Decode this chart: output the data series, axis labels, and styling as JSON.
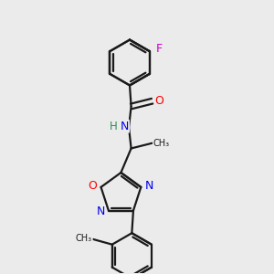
{
  "background_color": "#ebebeb",
  "bond_color": "#1a1a1a",
  "bond_width": 1.6,
  "atom_colors": {
    "F": "#cc00cc",
    "O": "#ff0000",
    "N": "#0000ee",
    "H": "#2e8b57",
    "C": "#1a1a1a"
  },
  "font_size_atom": 8.5,
  "fig_size": [
    3.0,
    3.0
  ],
  "dpi": 100,
  "xlim": [
    2.5,
    8.0
  ],
  "ylim": [
    0.5,
    9.8
  ]
}
